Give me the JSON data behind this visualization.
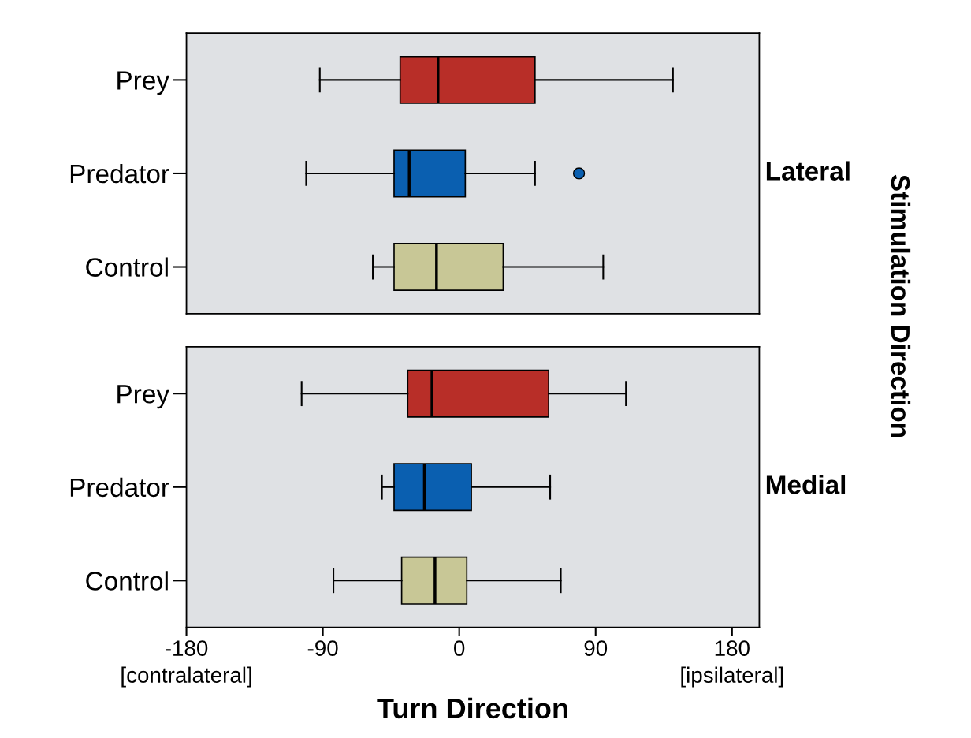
{
  "chart_data": [
    {
      "type": "box",
      "orientation": "horizontal",
      "categories": [
        "Prey",
        "Predator",
        "Control"
      ],
      "colors": [
        "#b82e28",
        "#0a5fb0",
        "#c8c796"
      ],
      "boxes": [
        {
          "low": -92,
          "q1": -39,
          "median": -14,
          "q3": 50,
          "high": 141
        },
        {
          "low": -101,
          "q1": -43,
          "median": -33,
          "q3": 4,
          "high": 50,
          "outliers": [
            79
          ]
        },
        {
          "low": -57,
          "q1": -43,
          "median": -15,
          "q3": 29,
          "high": 95
        }
      ],
      "xlim": [
        -180,
        198
      ],
      "xticks": [
        -180,
        -90,
        0,
        90,
        180
      ],
      "tick_labels": "y",
      "grid": false,
      "y2label": "Lateral",
      "annotations": [
        "Stimulation Direction"
      ]
    },
    {
      "type": "box",
      "orientation": "horizontal",
      "categories": [
        "Prey",
        "Predator",
        "Control"
      ],
      "colors": [
        "#b82e28",
        "#0a5fb0",
        "#c8c796"
      ],
      "boxes": [
        {
          "low": -104,
          "q1": -34,
          "median": -18,
          "q3": 59,
          "high": 110
        },
        {
          "low": -51,
          "q1": -43,
          "median": -23,
          "q3": 8,
          "high": 60
        },
        {
          "low": -83,
          "q1": -38,
          "median": -16,
          "q3": 5,
          "high": 67
        }
      ],
      "xlim": [
        -180,
        198
      ],
      "xticks": [
        -180,
        -90,
        0,
        90,
        180
      ],
      "grid": false,
      "xlabel": "Turn Direction",
      "y2label": "Medial",
      "annotations": [
        "[contralateral]",
        "[ipsilateral]"
      ]
    }
  ]
}
